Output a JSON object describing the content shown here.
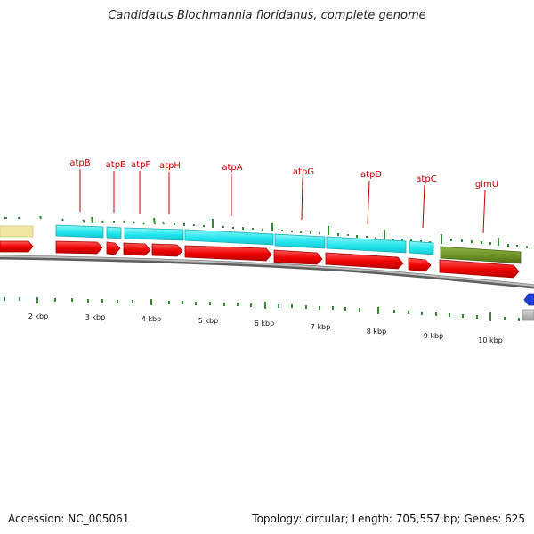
{
  "title": "Candidatus Blochmannia floridanus, complete genome",
  "footer": {
    "accession": "Accession: NC_005061",
    "stats": "Topology: circular; Length: 705,557 bp; Genes: 625"
  },
  "colors": {
    "gene_label": "#cc0000",
    "cds_arrow": "#ee0000",
    "atp_feature": "#22e6ee",
    "glmU_feature": "#6b8e23",
    "misc_feature": "#f1e6a2",
    "backbone": "#8c8c8c",
    "tick_marks": "#2f8f2f",
    "blue_feature": "#1f3fd6"
  },
  "genes": [
    {
      "name": "atpB"
    },
    {
      "name": "atpE"
    },
    {
      "name": "atpF"
    },
    {
      "name": "atpH"
    },
    {
      "name": "atpA"
    },
    {
      "name": "atpG"
    },
    {
      "name": "atpD"
    },
    {
      "name": "atpC"
    },
    {
      "name": "glmU"
    }
  ],
  "scale_labels": [
    "2 kbp",
    "3 kbp",
    "4 kbp",
    "5 kbp",
    "6 kbp",
    "7 kbp",
    "8 kbp",
    "9 kbp",
    "10 kbp"
  ]
}
